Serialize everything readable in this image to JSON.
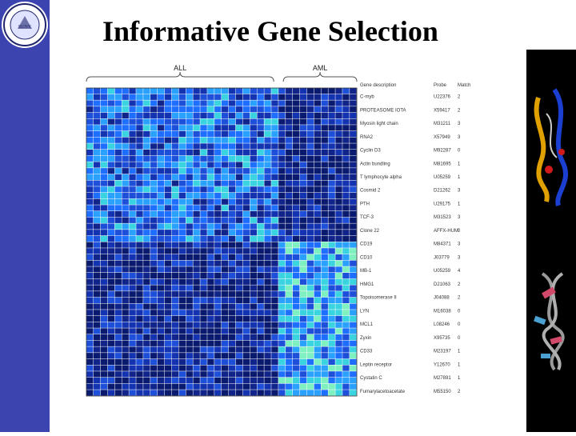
{
  "slide": {
    "title": "Informative Gene Selection",
    "logo_text": "UNIVERSITY OF NEW YORK AT ALBANY · 1844"
  },
  "figure": {
    "group_labels": [
      "ALL",
      "AML"
    ],
    "column_headers": [
      "Gene description",
      "Probe",
      "Match"
    ],
    "rows": [
      [
        "C-myb",
        "U22376",
        "2"
      ],
      [
        "PROTEASOME IOTA",
        "X59417",
        "2"
      ],
      [
        "Myosin light chain",
        "M31211",
        "3"
      ],
      [
        "RNA2",
        "X57949",
        "3"
      ],
      [
        "Cyclin D3",
        "M92287",
        "0"
      ],
      [
        "Actin bundling",
        "M81695",
        "1"
      ],
      [
        "T lymphocyte alpha",
        "U05259",
        "1"
      ],
      [
        "Cosmid 2",
        "D21262",
        "3"
      ],
      [
        "PTH",
        "U29175",
        "1"
      ],
      [
        "TCF-3",
        "M31523",
        "3"
      ],
      [
        "Clone 22",
        "AFFX-HUM",
        "0"
      ],
      [
        "CD19",
        "M84371",
        "3"
      ],
      [
        "CD10",
        "J03779",
        "3"
      ],
      [
        "MB-1",
        "U05259",
        "4"
      ],
      [
        "HMG1",
        "D21063",
        "2"
      ],
      [
        "Topoisomerase II",
        "J04088",
        "2"
      ],
      [
        "LYN",
        "M16038",
        "0"
      ],
      [
        "MCL1",
        "L08246",
        "0"
      ],
      [
        "Zyxin",
        "X95735",
        "0"
      ],
      [
        "CD33",
        "M23197",
        "1"
      ],
      [
        "Leptin receptor",
        "Y12670",
        "1"
      ],
      [
        "Cystatin C",
        "M27891",
        "1"
      ],
      [
        "Fumarylacetoacetate",
        "M55150",
        "2"
      ]
    ]
  },
  "colors": {
    "band": "#3c44b0",
    "heat_low": "#0a1a6e",
    "heat_mid": "#1e6fff",
    "heat_high": "#ffe14a"
  },
  "icons": [
    "university-seal-icon",
    "protein-structure-icon",
    "dna-helix-icon"
  ]
}
